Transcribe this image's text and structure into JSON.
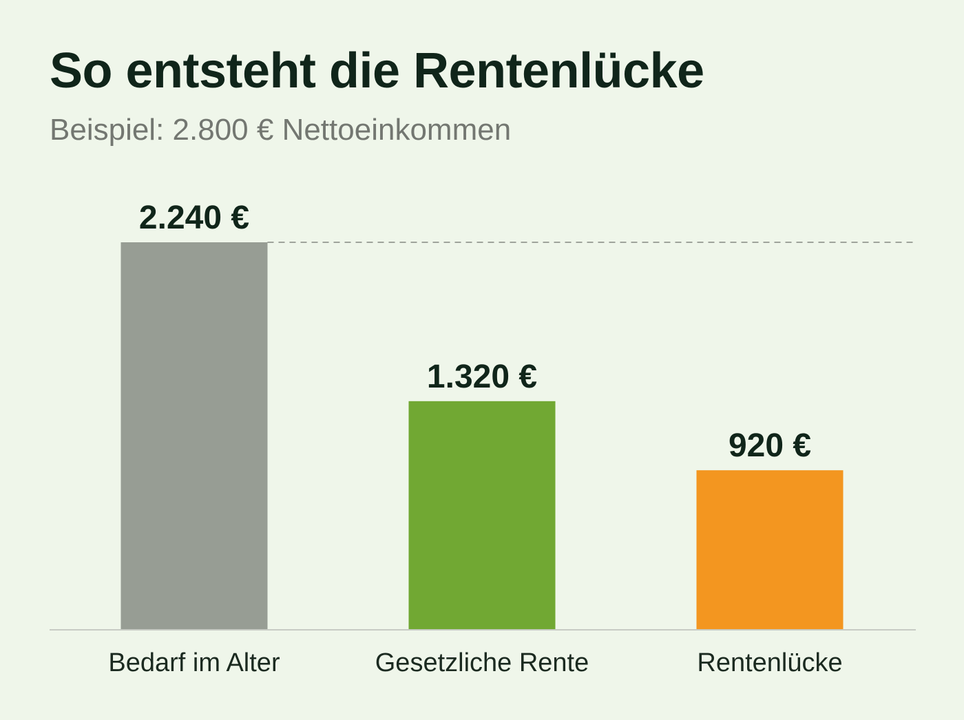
{
  "title": "So entsteht die Rentenlücke",
  "subtitle": "Beispiel: 2.800 € Nettoeinkommen",
  "colors": {
    "background": "#eff6ea",
    "baseline": "#c7cbc4",
    "reference_line": "#9ea39b"
  },
  "chart_data": {
    "type": "bar",
    "categories": [
      "Bedarf im Alter",
      "Gesetzliche Rente",
      "Rentenlücke"
    ],
    "values": [
      2240,
      1320,
      920
    ],
    "value_labels": [
      "2.240 €",
      "1.320 €",
      "920 €"
    ],
    "colors": [
      "#979d94",
      "#71a833",
      "#f39620"
    ],
    "reference_line": {
      "value": 2240,
      "style": "dashed"
    },
    "ylim": [
      0,
      2240
    ],
    "grid": false,
    "legend": "none"
  }
}
